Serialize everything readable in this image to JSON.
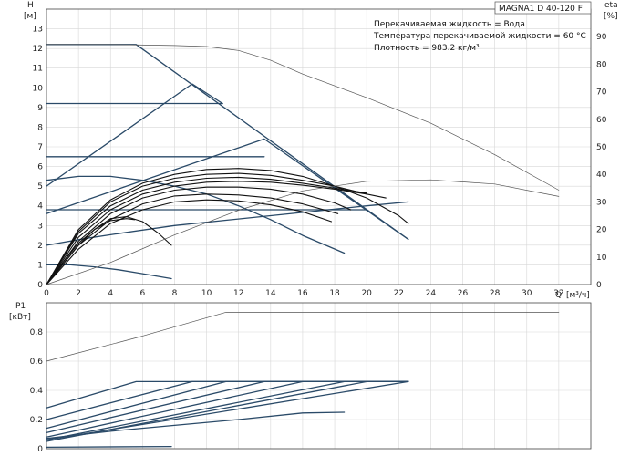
{
  "chart_data": [
    {
      "name": "head",
      "type": "line",
      "title": "MAGNA1 D 40-120 F",
      "annotations": [
        "Перекачиваемая жидкость = Вода",
        "Температура перекачиваемой жидкости = 60 °C",
        "Плотность = 983.2 кг/м³"
      ],
      "ylabel": "H",
      "yunit": "[м]",
      "y2label": "eta",
      "y2unit": "[%]",
      "xlabel": "Q",
      "xunit": "[м³/ч]",
      "xlim": [
        0,
        34
      ],
      "ylim": [
        0,
        14
      ],
      "y2lim": [
        0,
        100
      ],
      "xticks": [
        "0",
        "2",
        "4",
        "6",
        "8",
        "10",
        "12",
        "14",
        "16",
        "18",
        "20",
        "22",
        "24",
        "26",
        "28",
        "30",
        "32"
      ],
      "yticks": [
        "0",
        "1",
        "2",
        "3",
        "4",
        "5",
        "6",
        "7",
        "8",
        "9",
        "10",
        "11",
        "12",
        "13"
      ],
      "y2ticks": [
        "0",
        "10",
        "20",
        "30",
        "40",
        "50",
        "60",
        "70",
        "80",
        "90"
      ],
      "grid": true,
      "colors": {
        "envelope": "#2a4a68",
        "speed": "#111111",
        "reference": "#555555"
      },
      "series": [
        {
          "style": "envelope",
          "x": [
            0,
            5.6,
            22.6
          ],
          "y": [
            12.2,
            12.2,
            2.3
          ]
        },
        {
          "style": "envelope",
          "x": [
            0,
            9.1,
            11
          ],
          "y": [
            5.0,
            10.2,
            9.2
          ]
        },
        {
          "style": "envelope",
          "x": [
            0,
            13.6,
            22.6
          ],
          "y": [
            3.6,
            7.4,
            2.3
          ]
        },
        {
          "style": "envelope",
          "x": [
            0,
            2.5,
            5,
            8,
            11,
            14,
            17,
            20,
            22.6
          ],
          "y": [
            2.0,
            2.35,
            2.65,
            3.0,
            3.25,
            3.5,
            3.75,
            4.0,
            4.2
          ]
        },
        {
          "style": "envelope",
          "x": [
            0,
            11
          ],
          "y": [
            9.2,
            9.2
          ]
        },
        {
          "style": "envelope",
          "x": [
            0,
            13.6
          ],
          "y": [
            6.5,
            6.5
          ]
        },
        {
          "style": "envelope",
          "x": [
            0,
            20
          ],
          "y": [
            3.8,
            3.8
          ]
        },
        {
          "style": "envelope",
          "x": [
            0,
            2,
            4,
            6,
            8,
            10,
            12,
            14,
            16,
            18.6
          ],
          "y": [
            5.3,
            5.5,
            5.5,
            5.3,
            5.0,
            4.6,
            4.0,
            3.3,
            2.5,
            1.6
          ]
        },
        {
          "style": "envelope",
          "x": [
            0,
            1.5,
            3,
            4.5,
            6,
            7.8
          ],
          "y": [
            1.0,
            1.0,
            0.9,
            0.75,
            0.55,
            0.3
          ]
        },
        {
          "style": "speed",
          "x": [
            0,
            2,
            4,
            6,
            8,
            10,
            12,
            14,
            16,
            18,
            20,
            22,
            22.6
          ],
          "y": [
            0,
            2.8,
            4.3,
            5.15,
            5.6,
            5.85,
            5.9,
            5.8,
            5.5,
            5.0,
            4.4,
            3.5,
            3.1
          ]
        },
        {
          "style": "speed",
          "x": [
            0,
            2,
            4,
            6,
            8,
            10,
            12,
            14,
            16,
            18,
            20,
            21.2
          ],
          "y": [
            0,
            2.7,
            4.2,
            5.0,
            5.4,
            5.6,
            5.65,
            5.55,
            5.3,
            5.0,
            4.6,
            4.4
          ]
        },
        {
          "style": "speed",
          "x": [
            0,
            2,
            4,
            6,
            8,
            10,
            12,
            14,
            16,
            18,
            20
          ],
          "y": [
            0,
            2.6,
            4.0,
            4.8,
            5.2,
            5.4,
            5.45,
            5.35,
            5.15,
            4.9,
            4.65
          ]
        },
        {
          "style": "speed",
          "x": [
            0,
            2,
            4,
            6,
            8,
            10,
            12,
            14,
            16,
            18,
            20
          ],
          "y": [
            0,
            2.4,
            3.8,
            4.6,
            5.0,
            5.2,
            5.25,
            5.2,
            5.05,
            4.85,
            4.6
          ]
        },
        {
          "style": "speed",
          "x": [
            0,
            2,
            4,
            6,
            8,
            10,
            12,
            14,
            16,
            18,
            19
          ],
          "y": [
            0,
            2.2,
            3.6,
            4.4,
            4.8,
            4.95,
            4.95,
            4.85,
            4.6,
            4.15,
            3.8
          ]
        },
        {
          "style": "speed",
          "x": [
            0,
            2,
            4,
            6,
            8,
            10,
            12,
            14,
            16,
            18.2
          ],
          "y": [
            0,
            2.0,
            3.3,
            4.1,
            4.5,
            4.6,
            4.55,
            4.4,
            4.1,
            3.6
          ]
        },
        {
          "style": "speed",
          "x": [
            0,
            2,
            4,
            6,
            8,
            10,
            12,
            14,
            16,
            17.8
          ],
          "y": [
            0,
            1.8,
            3.1,
            3.8,
            4.2,
            4.3,
            4.25,
            4.05,
            3.7,
            3.2
          ]
        },
        {
          "style": "speed",
          "x": [
            0,
            1,
            2,
            3,
            4,
            5,
            6,
            7,
            7.8
          ],
          "y": [
            0,
            1.0,
            2.0,
            2.8,
            3.35,
            3.45,
            3.2,
            2.6,
            2.0
          ]
        },
        {
          "style": "speed",
          "x": [
            0,
            1,
            2,
            3,
            4,
            5,
            5.5
          ],
          "y": [
            0,
            1.1,
            2.1,
            2.8,
            3.25,
            3.35,
            3.3
          ]
        },
        {
          "style": "reference",
          "x": [
            0,
            4,
            8,
            10,
            12,
            14,
            16,
            20,
            24,
            28,
            32
          ],
          "y": [
            12.2,
            12.2,
            12.15,
            12.1,
            11.9,
            11.4,
            10.7,
            9.5,
            8.2,
            6.6,
            4.8
          ]
        },
        {
          "style": "reference",
          "axis": "y2",
          "x": [
            0,
            4,
            8,
            12,
            16,
            20,
            24,
            28,
            32
          ],
          "y": [
            0,
            8,
            18,
            27,
            34,
            37.5,
            38,
            36.5,
            32
          ]
        }
      ]
    },
    {
      "name": "power",
      "type": "line",
      "ylabel": "P1",
      "yunit": "[кВт]",
      "xlim": [
        0,
        34
      ],
      "ylim": [
        0,
        1.0
      ],
      "yticks": [
        "0",
        "0,2",
        "0,4",
        "0,6",
        "0,8"
      ],
      "grid": true,
      "series": [
        {
          "style": "reference",
          "x": [
            0,
            5.6,
            11.2,
            32
          ],
          "y": [
            0.6,
            0.76,
            0.935,
            0.935
          ]
        },
        {
          "style": "envelope",
          "x": [
            0,
            5.6,
            22.6
          ],
          "y": [
            0.28,
            0.46,
            0.46
          ]
        },
        {
          "style": "envelope",
          "x": [
            0,
            9.1,
            22.6
          ],
          "y": [
            0.2,
            0.46,
            0.46
          ]
        },
        {
          "style": "envelope",
          "x": [
            0,
            11.2,
            22.6
          ],
          "y": [
            0.14,
            0.46,
            0.46
          ]
        },
        {
          "style": "envelope",
          "x": [
            0,
            13.6,
            22.6
          ],
          "y": [
            0.11,
            0.46,
            0.46
          ]
        },
        {
          "style": "envelope",
          "x": [
            0,
            16,
            22.6
          ],
          "y": [
            0.08,
            0.46,
            0.46
          ]
        },
        {
          "style": "envelope",
          "x": [
            0,
            18.6,
            22.6
          ],
          "y": [
            0.06,
            0.46,
            0.46
          ]
        },
        {
          "style": "envelope",
          "x": [
            0,
            20,
            22.6
          ],
          "y": [
            0.05,
            0.46,
            0.46
          ]
        },
        {
          "style": "envelope",
          "x": [
            0,
            4,
            8,
            12,
            16,
            18.6
          ],
          "y": [
            0.07,
            0.12,
            0.16,
            0.2,
            0.245,
            0.25
          ]
        },
        {
          "style": "envelope",
          "x": [
            0,
            22.6
          ],
          "y": [
            0.06,
            0.46
          ]
        },
        {
          "style": "envelope",
          "x": [
            0,
            7.8
          ],
          "y": [
            0.01,
            0.015
          ]
        }
      ]
    }
  ]
}
